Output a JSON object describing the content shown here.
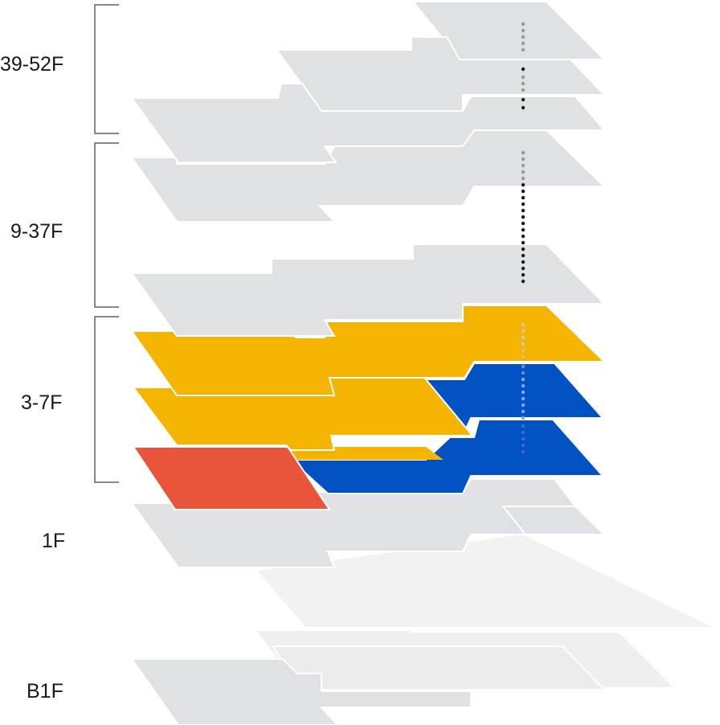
{
  "floor_labels": {
    "upper": "39-52F",
    "middle": "9-37F",
    "lower": "3-7F",
    "ground": "1F",
    "basement": "B1F"
  },
  "colors": {
    "slab": "#dfe1e4",
    "slab_light": "#ececec",
    "slab_faint": "#f2f2f2",
    "highlight_yellow": "#f5b400",
    "highlight_blue": "#0052c2",
    "highlight_red": "#e9553b",
    "bracket": "#888888",
    "dot_dark": "#1a1a1a",
    "dot_grey": "#999999"
  }
}
